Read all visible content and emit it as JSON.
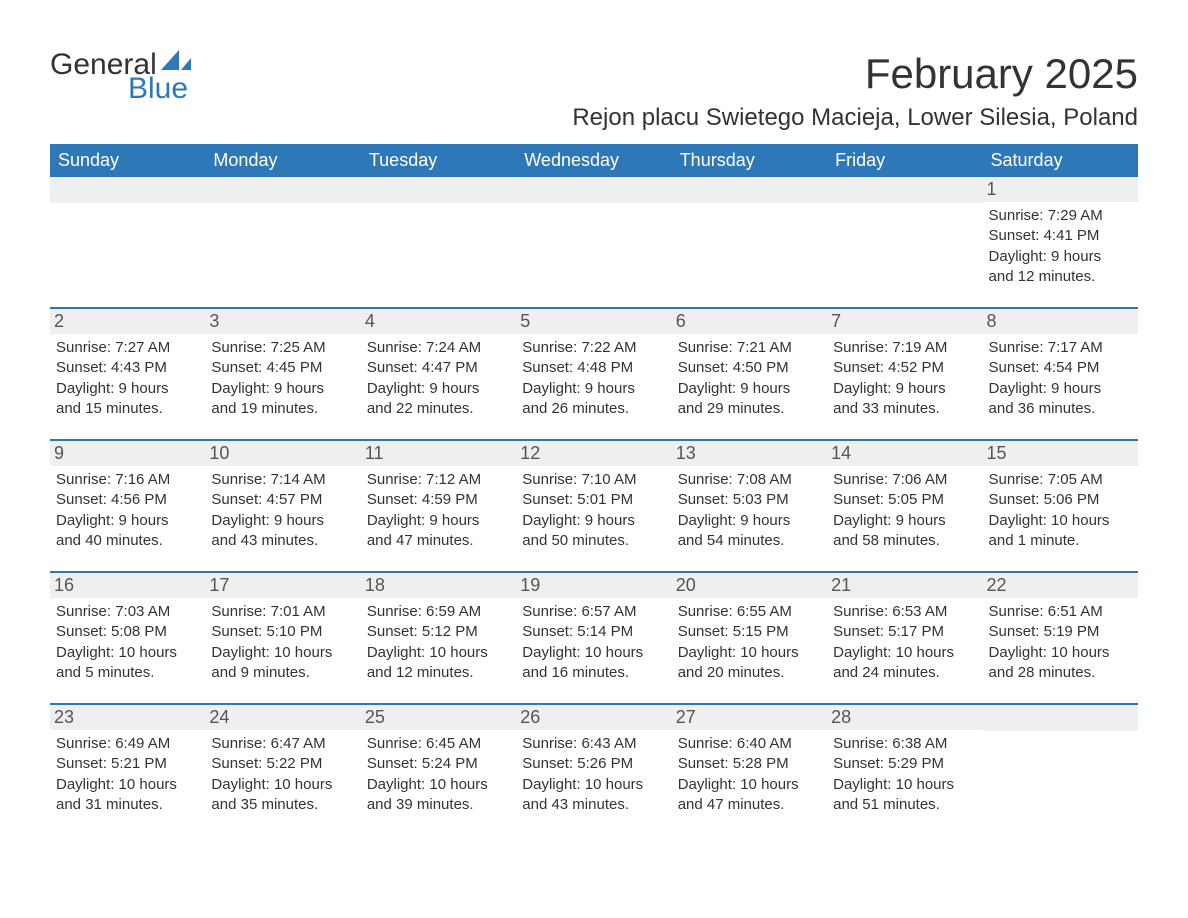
{
  "logo": {
    "text1": "General",
    "text2": "Blue",
    "accent_color": "#2f78b7"
  },
  "title": "February 2025",
  "location": "Rejon placu Swietego Macieja, Lower Silesia, Poland",
  "colors": {
    "header_bg": "#2f78b7",
    "header_text": "#ffffff",
    "daynum_bg": "#efefef",
    "text": "#333333",
    "border": "#2f78b7",
    "background": "#ffffff"
  },
  "columns": [
    "Sunday",
    "Monday",
    "Tuesday",
    "Wednesday",
    "Thursday",
    "Friday",
    "Saturday"
  ],
  "weeks": [
    [
      null,
      null,
      null,
      null,
      null,
      null,
      {
        "n": "1",
        "sr": "Sunrise: 7:29 AM",
        "ss": "Sunset: 4:41 PM",
        "d1": "Daylight: 9 hours",
        "d2": "and 12 minutes."
      }
    ],
    [
      {
        "n": "2",
        "sr": "Sunrise: 7:27 AM",
        "ss": "Sunset: 4:43 PM",
        "d1": "Daylight: 9 hours",
        "d2": "and 15 minutes."
      },
      {
        "n": "3",
        "sr": "Sunrise: 7:25 AM",
        "ss": "Sunset: 4:45 PM",
        "d1": "Daylight: 9 hours",
        "d2": "and 19 minutes."
      },
      {
        "n": "4",
        "sr": "Sunrise: 7:24 AM",
        "ss": "Sunset: 4:47 PM",
        "d1": "Daylight: 9 hours",
        "d2": "and 22 minutes."
      },
      {
        "n": "5",
        "sr": "Sunrise: 7:22 AM",
        "ss": "Sunset: 4:48 PM",
        "d1": "Daylight: 9 hours",
        "d2": "and 26 minutes."
      },
      {
        "n": "6",
        "sr": "Sunrise: 7:21 AM",
        "ss": "Sunset: 4:50 PM",
        "d1": "Daylight: 9 hours",
        "d2": "and 29 minutes."
      },
      {
        "n": "7",
        "sr": "Sunrise: 7:19 AM",
        "ss": "Sunset: 4:52 PM",
        "d1": "Daylight: 9 hours",
        "d2": "and 33 minutes."
      },
      {
        "n": "8",
        "sr": "Sunrise: 7:17 AM",
        "ss": "Sunset: 4:54 PM",
        "d1": "Daylight: 9 hours",
        "d2": "and 36 minutes."
      }
    ],
    [
      {
        "n": "9",
        "sr": "Sunrise: 7:16 AM",
        "ss": "Sunset: 4:56 PM",
        "d1": "Daylight: 9 hours",
        "d2": "and 40 minutes."
      },
      {
        "n": "10",
        "sr": "Sunrise: 7:14 AM",
        "ss": "Sunset: 4:57 PM",
        "d1": "Daylight: 9 hours",
        "d2": "and 43 minutes."
      },
      {
        "n": "11",
        "sr": "Sunrise: 7:12 AM",
        "ss": "Sunset: 4:59 PM",
        "d1": "Daylight: 9 hours",
        "d2": "and 47 minutes."
      },
      {
        "n": "12",
        "sr": "Sunrise: 7:10 AM",
        "ss": "Sunset: 5:01 PM",
        "d1": "Daylight: 9 hours",
        "d2": "and 50 minutes."
      },
      {
        "n": "13",
        "sr": "Sunrise: 7:08 AM",
        "ss": "Sunset: 5:03 PM",
        "d1": "Daylight: 9 hours",
        "d2": "and 54 minutes."
      },
      {
        "n": "14",
        "sr": "Sunrise: 7:06 AM",
        "ss": "Sunset: 5:05 PM",
        "d1": "Daylight: 9 hours",
        "d2": "and 58 minutes."
      },
      {
        "n": "15",
        "sr": "Sunrise: 7:05 AM",
        "ss": "Sunset: 5:06 PM",
        "d1": "Daylight: 10 hours",
        "d2": "and 1 minute."
      }
    ],
    [
      {
        "n": "16",
        "sr": "Sunrise: 7:03 AM",
        "ss": "Sunset: 5:08 PM",
        "d1": "Daylight: 10 hours",
        "d2": "and 5 minutes."
      },
      {
        "n": "17",
        "sr": "Sunrise: 7:01 AM",
        "ss": "Sunset: 5:10 PM",
        "d1": "Daylight: 10 hours",
        "d2": "and 9 minutes."
      },
      {
        "n": "18",
        "sr": "Sunrise: 6:59 AM",
        "ss": "Sunset: 5:12 PM",
        "d1": "Daylight: 10 hours",
        "d2": "and 12 minutes."
      },
      {
        "n": "19",
        "sr": "Sunrise: 6:57 AM",
        "ss": "Sunset: 5:14 PM",
        "d1": "Daylight: 10 hours",
        "d2": "and 16 minutes."
      },
      {
        "n": "20",
        "sr": "Sunrise: 6:55 AM",
        "ss": "Sunset: 5:15 PM",
        "d1": "Daylight: 10 hours",
        "d2": "and 20 minutes."
      },
      {
        "n": "21",
        "sr": "Sunrise: 6:53 AM",
        "ss": "Sunset: 5:17 PM",
        "d1": "Daylight: 10 hours",
        "d2": "and 24 minutes."
      },
      {
        "n": "22",
        "sr": "Sunrise: 6:51 AM",
        "ss": "Sunset: 5:19 PM",
        "d1": "Daylight: 10 hours",
        "d2": "and 28 minutes."
      }
    ],
    [
      {
        "n": "23",
        "sr": "Sunrise: 6:49 AM",
        "ss": "Sunset: 5:21 PM",
        "d1": "Daylight: 10 hours",
        "d2": "and 31 minutes."
      },
      {
        "n": "24",
        "sr": "Sunrise: 6:47 AM",
        "ss": "Sunset: 5:22 PM",
        "d1": "Daylight: 10 hours",
        "d2": "and 35 minutes."
      },
      {
        "n": "25",
        "sr": "Sunrise: 6:45 AM",
        "ss": "Sunset: 5:24 PM",
        "d1": "Daylight: 10 hours",
        "d2": "and 39 minutes."
      },
      {
        "n": "26",
        "sr": "Sunrise: 6:43 AM",
        "ss": "Sunset: 5:26 PM",
        "d1": "Daylight: 10 hours",
        "d2": "and 43 minutes."
      },
      {
        "n": "27",
        "sr": "Sunrise: 6:40 AM",
        "ss": "Sunset: 5:28 PM",
        "d1": "Daylight: 10 hours",
        "d2": "and 47 minutes."
      },
      {
        "n": "28",
        "sr": "Sunrise: 6:38 AM",
        "ss": "Sunset: 5:29 PM",
        "d1": "Daylight: 10 hours",
        "d2": "and 51 minutes."
      },
      null
    ]
  ]
}
